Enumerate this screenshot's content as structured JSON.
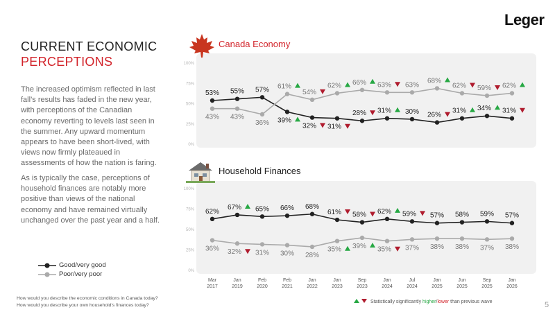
{
  "brand": "Leger",
  "page_number": "5",
  "heading": {
    "line1": "CURRENT ECONOMIC",
    "line2": "PERCEPTIONS"
  },
  "paragraphs": [
    "The increased optimism reflected in last fall’s results has faded in the new year, with perceptions of the Canadian economy reverting to levels last seen in the summer. Any upward momentum appears to have been short-lived, with views now firmly plateaued in assessments of how the nation is faring.",
    "As is typically the case, perceptions of household finances are notably more positive than views of the national economy and have remained virtually unchanged over the past year and a half."
  ],
  "legend": {
    "good": "Good/very good",
    "poor": "Poor/very poor"
  },
  "questions": [
    "How would you describe the economic conditions in Canada today?",
    "How would you describe your own household’s finances today?"
  ],
  "significance_note": {
    "prefix": "Statistically significantly ",
    "higher": "higher",
    "sep": "/",
    "lower": "lower",
    "suffix": " than previous wave"
  },
  "colors": {
    "accent": "#d2232a",
    "up": "#27a844",
    "down": "#b01c2e",
    "good_line": "#222222",
    "poor_line": "#aaaaaa"
  },
  "icons": {
    "canada": "maple-leaf-icon",
    "household": "house-icon"
  },
  "chart_data": [
    {
      "type": "line",
      "title": "Canada Economy",
      "x": [
        "Mar 2017",
        "Jan 2019",
        "Feb 2020",
        "Feb 2021",
        "Jan 2022",
        "Jan 2023",
        "Sep 2023",
        "Jan 2024",
        "Jul 2024",
        "Jan 2025",
        "Jun 2025",
        "Sep 2025",
        "Jan 2026"
      ],
      "ylim": [
        0,
        100
      ],
      "yticks": [
        "0%",
        "25%",
        "50%",
        "75%",
        "100%"
      ],
      "series": [
        {
          "name": "Good/very good",
          "values": [
            53,
            55,
            57,
            39,
            32,
            31,
            28,
            31,
            30,
            26,
            31,
            34,
            31
          ],
          "sig": [
            "",
            "",
            "",
            "up",
            "down",
            "down",
            "down",
            "up",
            "",
            "down",
            "up",
            "up",
            "down"
          ]
        },
        {
          "name": "Poor/very poor",
          "values": [
            43,
            43,
            36,
            61,
            54,
            62,
            66,
            63,
            63,
            68,
            62,
            59,
            62
          ],
          "sig": [
            "",
            "",
            "",
            "up",
            "down",
            "up",
            "up",
            "down",
            "",
            "up",
            "down",
            "down",
            "up"
          ]
        }
      ]
    },
    {
      "type": "line",
      "title": "Household Finances",
      "x": [
        "Mar 2017",
        "Jan 2019",
        "Feb 2020",
        "Feb 2021",
        "Jan 2022",
        "Jan 2023",
        "Sep 2023",
        "Jan 2024",
        "Jul 2024",
        "Jan 2025",
        "Jun 2025",
        "Sep 2025",
        "Jan 2026"
      ],
      "ylim": [
        0,
        100
      ],
      "yticks": [
        "0%",
        "25%",
        "50%",
        "75%",
        "100%"
      ],
      "series": [
        {
          "name": "Good/very good",
          "values": [
            62,
            67,
            65,
            66,
            68,
            61,
            58,
            62,
            59,
            57,
            58,
            59,
            57
          ],
          "sig": [
            "",
            "up",
            "",
            "",
            "",
            "down",
            "down",
            "up",
            "down",
            "",
            "",
            "",
            ""
          ]
        },
        {
          "name": "Poor/very poor",
          "values": [
            36,
            32,
            31,
            30,
            28,
            35,
            39,
            35,
            37,
            38,
            38,
            37,
            38
          ],
          "sig": [
            "",
            "down",
            "",
            "",
            "",
            "up",
            "up",
            "down",
            "",
            "",
            "",
            "",
            ""
          ]
        }
      ]
    }
  ]
}
